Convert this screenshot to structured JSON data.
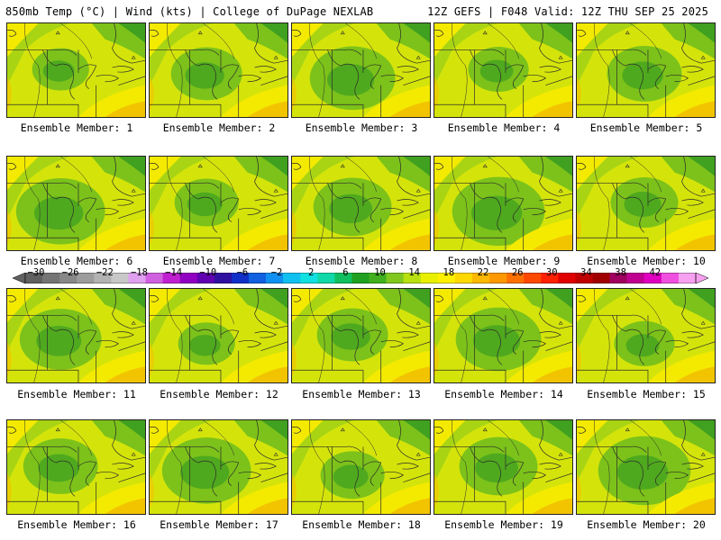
{
  "header": {
    "left_title": "850mb Temp (°C) | Wind (kts) | College of DuPage NEXLAB",
    "right_title": "12Z GEFS | F048 Valid: 12Z THU SEP 25 2025"
  },
  "colorbar": {
    "tick_labels": [
      "−30",
      "−26",
      "−22",
      "−18",
      "−14",
      "−10",
      "−6",
      "−2",
      "2",
      "6",
      "10",
      "14",
      "18",
      "22",
      "26",
      "30",
      "34",
      "38",
      "42"
    ],
    "colors": [
      "#606060",
      "#747474",
      "#888888",
      "#9c9c9c",
      "#b2b2b2",
      "#c8c8c8",
      "#e0a0f0",
      "#d060e0",
      "#c020d0",
      "#9000c0",
      "#6000b0",
      "#3010a0",
      "#1030c8",
      "#1060e0",
      "#1090f0",
      "#10c0f0",
      "#10e0e0",
      "#10d8a8",
      "#10c060",
      "#20a020",
      "#40b020",
      "#80c820",
      "#b8e010",
      "#e8f000",
      "#fff000",
      "#ffd800",
      "#ffb800",
      "#ff9800",
      "#ff7000",
      "#ff4800",
      "#ff2000",
      "#e00000",
      "#c00000",
      "#a00000",
      "#a00060",
      "#c00090",
      "#e000c0",
      "#f050e0",
      "#f8a0f0"
    ]
  },
  "map_colors": {
    "green_dark": "#40a020",
    "green": "#7cc21a",
    "green_light": "#a8d414",
    "yellow_green": "#d4e40a",
    "yellow": "#f4ea00",
    "orange": "#f2c400",
    "lines": "#2a2a2a"
  },
  "members": [
    {
      "label": "Ensemble Member: 1"
    },
    {
      "label": "Ensemble Member: 2"
    },
    {
      "label": "Ensemble Member: 3"
    },
    {
      "label": "Ensemble Member: 4"
    },
    {
      "label": "Ensemble Member: 5"
    },
    {
      "label": "Ensemble Member: 6"
    },
    {
      "label": "Ensemble Member: 7"
    },
    {
      "label": "Ensemble Member: 8"
    },
    {
      "label": "Ensemble Member: 9"
    },
    {
      "label": "Ensemble Member: 10"
    },
    {
      "label": "Ensemble Member: 11"
    },
    {
      "label": "Ensemble Member: 12"
    },
    {
      "label": "Ensemble Member: 13"
    },
    {
      "label": "Ensemble Member: 14"
    },
    {
      "label": "Ensemble Member: 15"
    },
    {
      "label": "Ensemble Member: 16"
    },
    {
      "label": "Ensemble Member: 17"
    },
    {
      "label": "Ensemble Member: 18"
    },
    {
      "label": "Ensemble Member: 19"
    },
    {
      "label": "Ensemble Member: 20"
    }
  ]
}
